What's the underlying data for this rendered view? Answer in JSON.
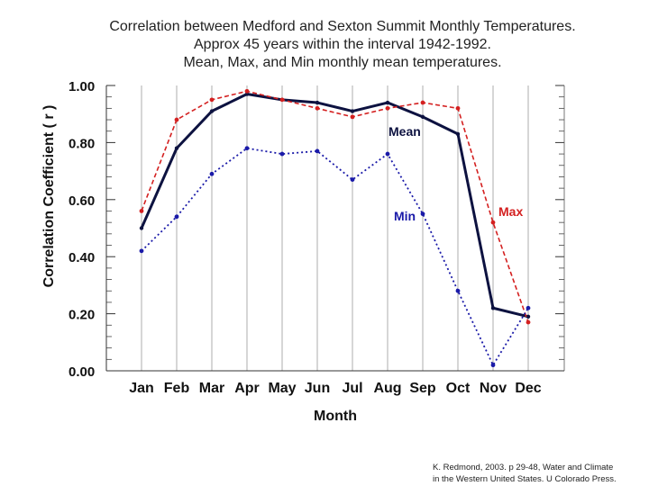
{
  "chart_data": {
    "type": "line",
    "title_lines": [
      "Correlation between Medford and Sexton Summit Monthly Temperatures.",
      "Approx 45 years within the interval 1942-1992.",
      "Mean, Max, and Min monthly mean temperatures."
    ],
    "xlabel": "Month",
    "ylabel": "Correlation Coefficient  ( r )",
    "categories": [
      "Jan",
      "Feb",
      "Mar",
      "Apr",
      "May",
      "Jun",
      "Jul",
      "Aug",
      "Sep",
      "Oct",
      "Nov",
      "Dec"
    ],
    "ylim": [
      0.0,
      1.0
    ],
    "yticks": [
      "0.00",
      "0.20",
      "0.40",
      "0.60",
      "0.80",
      "1.00"
    ],
    "series": [
      {
        "name": "Mean",
        "color": "#0d1240",
        "style": "solid",
        "values": [
          0.5,
          0.78,
          0.91,
          0.97,
          0.95,
          0.94,
          0.91,
          0.94,
          0.89,
          0.83,
          0.22,
          0.19
        ]
      },
      {
        "name": "Max",
        "color": "#d42020",
        "style": "dashed",
        "values": [
          0.56,
          0.88,
          0.95,
          0.98,
          0.95,
          0.92,
          0.89,
          0.92,
          0.94,
          0.92,
          0.52,
          0.17
        ]
      },
      {
        "name": "Min",
        "color": "#1a1aa8",
        "style": "dotted",
        "values": [
          0.42,
          0.54,
          0.69,
          0.78,
          0.76,
          0.77,
          0.67,
          0.76,
          0.55,
          0.28,
          0.02,
          0.22
        ]
      }
    ],
    "annotations": [
      {
        "text": "Mean",
        "series": "Mean",
        "color": "#0d1240"
      },
      {
        "text": "Max",
        "series": "Max",
        "color": "#d42020"
      },
      {
        "text": "Min",
        "series": "Min",
        "color": "#1a1aa8"
      }
    ]
  },
  "credit": {
    "line1": "K. Redmond, 2003.  p 29-48, Water and Climate",
    "line2": "in the Western United States. U Colorado Press."
  }
}
